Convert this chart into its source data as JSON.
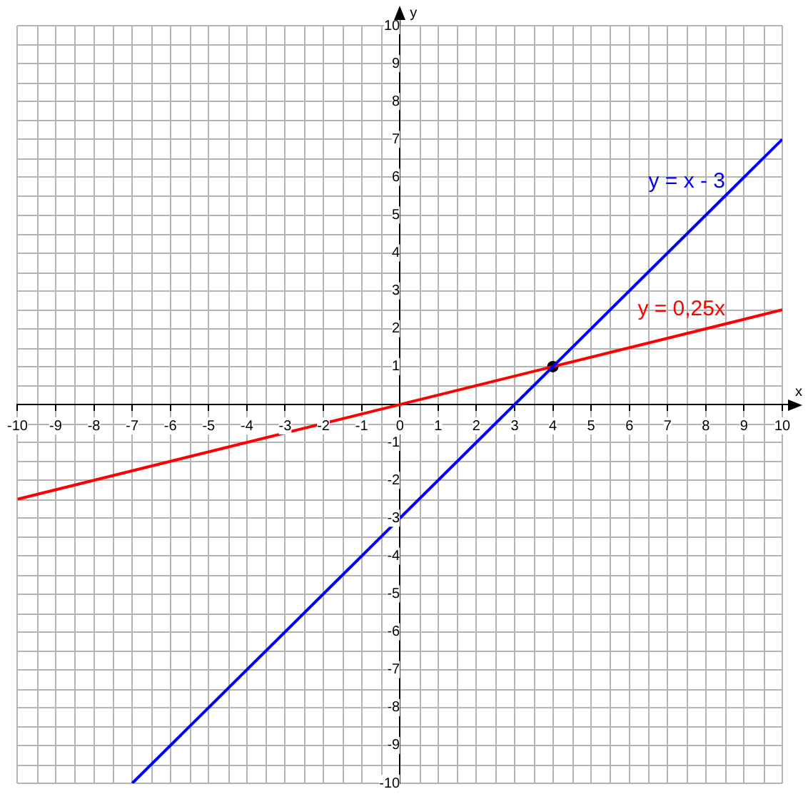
{
  "chart_data": {
    "type": "line",
    "xlabel": "x",
    "ylabel": "y",
    "xlim": [
      -10,
      10
    ],
    "ylim": [
      -10,
      10
    ],
    "xticks": [
      -10,
      -9,
      -8,
      -7,
      -6,
      -5,
      -4,
      -3,
      -2,
      -1,
      0,
      1,
      2,
      3,
      4,
      5,
      6,
      7,
      8,
      9,
      10
    ],
    "yticks": [
      -10,
      -9,
      -8,
      -7,
      -6,
      -5,
      -4,
      -3,
      -2,
      -1,
      {
        "value": 0,
        "label": null
      },
      1,
      2,
      3,
      4,
      5,
      6,
      7,
      8,
      9,
      10
    ],
    "grid": true,
    "legend": false,
    "series": [
      {
        "name": "y = x - 3",
        "color": "#0000ff",
        "x": [
          -7,
          10
        ],
        "values": [
          -10,
          7
        ],
        "marker": "none"
      },
      {
        "name": "y = 0,25x",
        "color": "#ff0000",
        "x": [
          -10,
          10
        ],
        "values": [
          -2.5,
          2.5
        ],
        "marker": "none"
      },
      {
        "type": "scatter",
        "color": "#000000",
        "x": [
          4
        ],
        "values": [
          1
        ],
        "marker": "circle"
      }
    ]
  }
}
